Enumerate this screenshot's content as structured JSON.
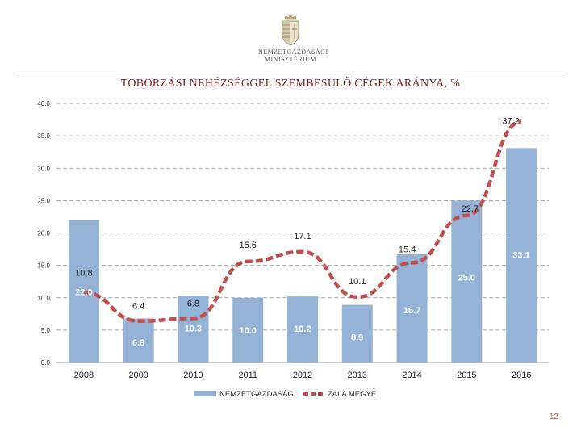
{
  "logo": {
    "lines": [
      "NEMZETGAZDASÁGI",
      "MINISZTÉRIUM"
    ],
    "icon": "hungarian-coat-of-arms-icon"
  },
  "colors": {
    "bar": "#95b3d7",
    "line": "#c0504d",
    "title": "#7a1c1c",
    "bar_label": "#ffffff"
  },
  "page_number": "12",
  "chart_data": {
    "type": "bar",
    "title": "TOBORZÁSI NEHÉZSÉGGEL SZEMBESÜLŐ CÉGEK ARÁNYA, %",
    "xlabel": "",
    "ylabel": "",
    "ylim": [
      0,
      40
    ],
    "yticks": [
      "0.0",
      "5.0",
      "10.0",
      "15.0",
      "20.0",
      "25.0",
      "30.0",
      "35.0",
      "40.0"
    ],
    "categories": [
      "2008",
      "2009",
      "2010",
      "2011",
      "2012",
      "2013",
      "2014",
      "2015",
      "2016"
    ],
    "grid": true,
    "legend_position": "bottom",
    "series": [
      {
        "name": "NEMZETGAZDASÁG",
        "kind": "bar",
        "values": [
          22.0,
          6.8,
          10.3,
          10.0,
          10.2,
          8.9,
          16.7,
          25.0,
          33.1
        ],
        "labels": [
          "22.0",
          "6.8",
          "10.3",
          "10.0",
          "10.2",
          "8.9",
          "16.7",
          "25.0",
          "33.1"
        ]
      },
      {
        "name": "ZALA MEGYE",
        "kind": "line",
        "style": "dashed",
        "values": [
          10.8,
          6.4,
          6.8,
          15.6,
          17.1,
          10.1,
          15.4,
          22.7,
          37.2
        ],
        "labels": [
          "10.8",
          "6.4",
          "6.8",
          "15.6",
          "17.1",
          "10.1",
          "15.4",
          "22.7",
          "37.2"
        ]
      }
    ]
  }
}
